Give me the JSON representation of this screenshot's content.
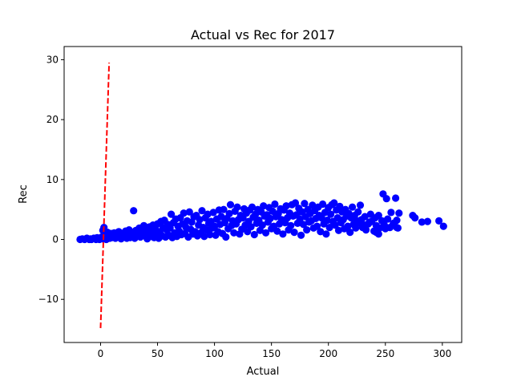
{
  "chart_data": {
    "type": "scatter",
    "title": "Actual vs Rec for 2017",
    "xlabel": "Actual",
    "ylabel": "Rec",
    "xlim": [
      -32,
      317
    ],
    "ylim": [
      -17.2,
      32.2
    ],
    "xticks": [
      0,
      50,
      100,
      150,
      200,
      250,
      300
    ],
    "yticks": [
      -10,
      0,
      10,
      20,
      30
    ],
    "grid": false,
    "legend": "none",
    "point_color": "#0000ff",
    "series": [
      {
        "kind": "points",
        "color": "#0000ff",
        "points": [
          [
            -18,
            0.0
          ],
          [
            -16,
            0.1
          ],
          [
            -14,
            0.0
          ],
          [
            -12,
            0.2
          ],
          [
            -10,
            0.0
          ],
          [
            -9,
            0.1
          ],
          [
            -8,
            0.0
          ],
          [
            -6,
            0.2
          ],
          [
            -5,
            0.1
          ],
          [
            -4,
            0.0
          ],
          [
            -3,
            0.3
          ],
          [
            -2,
            0.1
          ],
          [
            -1,
            0.0
          ],
          [
            0,
            0.2
          ],
          [
            1,
            0.4
          ],
          [
            2,
            0.1
          ],
          [
            3,
            0.5
          ],
          [
            4,
            0.3
          ],
          [
            5,
            0.0
          ],
          [
            6,
            0.8
          ],
          [
            7,
            0.4
          ],
          [
            8,
            0.2
          ],
          [
            2,
            1.5
          ],
          [
            3,
            2.0
          ],
          [
            6,
            1.2
          ],
          [
            9,
            1.0
          ],
          [
            10,
            0.3
          ],
          [
            11,
            0.7
          ],
          [
            12,
            1.1
          ],
          [
            13,
            0.2
          ],
          [
            14,
            0.9
          ],
          [
            15,
            0.4
          ],
          [
            16,
            1.3
          ],
          [
            17,
            0.6
          ],
          [
            18,
            0.1
          ],
          [
            19,
            1.0
          ],
          [
            20,
            0.5
          ],
          [
            22,
            1.4
          ],
          [
            23,
            0.2
          ],
          [
            24,
            0.8
          ],
          [
            25,
            1.6
          ],
          [
            26,
            0.3
          ],
          [
            27,
            1.1
          ],
          [
            28,
            0.6
          ],
          [
            29,
            4.8
          ],
          [
            30,
            0.2
          ],
          [
            31,
            1.5
          ],
          [
            32,
            0.9
          ],
          [
            34,
            1.9
          ],
          [
            35,
            0.4
          ],
          [
            36,
            1.2
          ],
          [
            38,
            2.3
          ],
          [
            39,
            0.6
          ],
          [
            40,
            1.7
          ],
          [
            41,
            0.1
          ],
          [
            42,
            1.0
          ],
          [
            43,
            2.1
          ],
          [
            44,
            0.5
          ],
          [
            45,
            1.4
          ],
          [
            46,
            2.4
          ],
          [
            47,
            0.3
          ],
          [
            48,
            1.8
          ],
          [
            49,
            0.8
          ],
          [
            50,
            2.6
          ],
          [
            51,
            0.2
          ],
          [
            52,
            1.3
          ],
          [
            53,
            3.0
          ],
          [
            54,
            0.6
          ],
          [
            55,
            2.0
          ],
          [
            56,
            3.2
          ],
          [
            57,
            0.4
          ],
          [
            58,
            1.6
          ],
          [
            59,
            2.5
          ],
          [
            60,
            0.7
          ],
          [
            61,
            1.9
          ],
          [
            62,
            4.2
          ],
          [
            63,
            0.3
          ],
          [
            64,
            2.8
          ],
          [
            65,
            1.1
          ],
          [
            66,
            3.4
          ],
          [
            67,
            0.5
          ],
          [
            68,
            2.2
          ],
          [
            69,
            1.4
          ],
          [
            70,
            3.6
          ],
          [
            71,
            0.8
          ],
          [
            72,
            2.6
          ],
          [
            73,
            4.4
          ],
          [
            74,
            1.0
          ],
          [
            75,
            2.0
          ],
          [
            76,
            3.1
          ],
          [
            77,
            0.4
          ],
          [
            78,
            4.6
          ],
          [
            79,
            1.7
          ],
          [
            80,
            2.9
          ],
          [
            81,
            0.9
          ],
          [
            82,
            3.8
          ],
          [
            83,
            1.3
          ],
          [
            84,
            4.0
          ],
          [
            85,
            0.6
          ],
          [
            86,
            2.4
          ],
          [
            87,
            3.3
          ],
          [
            88,
            1.1
          ],
          [
            89,
            4.8
          ],
          [
            90,
            2.0
          ],
          [
            91,
            0.5
          ],
          [
            92,
            3.6
          ],
          [
            93,
            1.6
          ],
          [
            94,
            4.2
          ],
          [
            95,
            2.7
          ],
          [
            96,
            0.8
          ],
          [
            97,
            3.0
          ],
          [
            98,
            1.9
          ],
          [
            99,
            4.5
          ],
          [
            100,
            2.2
          ],
          [
            101,
            0.7
          ],
          [
            102,
            3.4
          ],
          [
            103,
            1.3
          ],
          [
            104,
            4.9
          ],
          [
            105,
            2.5
          ],
          [
            106,
            3.8
          ],
          [
            107,
            1.0
          ],
          [
            108,
            5.0
          ],
          [
            109,
            2.8
          ],
          [
            110,
            0.4
          ],
          [
            111,
            3.5
          ],
          [
            112,
            1.8
          ],
          [
            113,
            4.3
          ],
          [
            114,
            5.8
          ],
          [
            115,
            2.3
          ],
          [
            116,
            3.1
          ],
          [
            117,
            1.1
          ],
          [
            118,
            4.7
          ],
          [
            119,
            2.6
          ],
          [
            120,
            5.4
          ],
          [
            121,
            3.3
          ],
          [
            122,
            0.9
          ],
          [
            123,
            4.0
          ],
          [
            124,
            1.7
          ],
          [
            125,
            3.6
          ],
          [
            126,
            5.1
          ],
          [
            127,
            2.4
          ],
          [
            128,
            4.4
          ],
          [
            129,
            1.3
          ],
          [
            130,
            3.0
          ],
          [
            131,
            4.9
          ],
          [
            132,
            2.1
          ],
          [
            133,
            5.4
          ],
          [
            134,
            3.7
          ],
          [
            135,
            0.8
          ],
          [
            136,
            4.2
          ],
          [
            137,
            2.7
          ],
          [
            138,
            5.0
          ],
          [
            139,
            3.2
          ],
          [
            140,
            1.5
          ],
          [
            141,
            4.6
          ],
          [
            142,
            2.4
          ],
          [
            143,
            5.6
          ],
          [
            144,
            3.9
          ],
          [
            145,
            1.1
          ],
          [
            146,
            4.1
          ],
          [
            147,
            2.9
          ],
          [
            148,
            5.3
          ],
          [
            149,
            3.5
          ],
          [
            150,
            1.8
          ],
          [
            151,
            4.7
          ],
          [
            152,
            2.2
          ],
          [
            153,
            5.9
          ],
          [
            154,
            3.8
          ],
          [
            155,
            1.4
          ],
          [
            156,
            4.3
          ],
          [
            157,
            2.6
          ],
          [
            158,
            5.1
          ],
          [
            159,
            3.3
          ],
          [
            160,
            0.9
          ],
          [
            161,
            4.9
          ],
          [
            162,
            2.8
          ],
          [
            163,
            5.6
          ],
          [
            164,
            3.6
          ],
          [
            165,
            1.6
          ],
          [
            166,
            4.4
          ],
          [
            167,
            2.3
          ],
          [
            168,
            5.8
          ],
          [
            169,
            3.9
          ],
          [
            170,
            1.2
          ],
          [
            171,
            6.1
          ],
          [
            172,
            4.1
          ],
          [
            173,
            2.7
          ],
          [
            174,
            5.2
          ],
          [
            175,
            3.4
          ],
          [
            176,
            0.7
          ],
          [
            177,
            4.6
          ],
          [
            178,
            2.5
          ],
          [
            179,
            6.0
          ],
          [
            180,
            3.8
          ],
          [
            181,
            1.6
          ],
          [
            182,
            5.0
          ],
          [
            183,
            2.9
          ],
          [
            184,
            4.3
          ],
          [
            185,
            3.1
          ],
          [
            186,
            5.7
          ],
          [
            187,
            1.9
          ],
          [
            188,
            4.8
          ],
          [
            189,
            3.5
          ],
          [
            190,
            2.2
          ],
          [
            191,
            5.4
          ],
          [
            192,
            4.0
          ],
          [
            193,
            1.3
          ],
          [
            194,
            3.6
          ],
          [
            195,
            5.9
          ],
          [
            196,
            2.6
          ],
          [
            197,
            4.5
          ],
          [
            198,
            0.9
          ],
          [
            199,
            3.2
          ],
          [
            200,
            5.3
          ],
          [
            201,
            2.0
          ],
          [
            202,
            4.2
          ],
          [
            203,
            5.8
          ],
          [
            204,
            3.0
          ],
          [
            205,
            6.1
          ],
          [
            206,
            2.4
          ],
          [
            207,
            4.9
          ],
          [
            208,
            3.6
          ],
          [
            209,
            1.5
          ],
          [
            210,
            5.5
          ],
          [
            211,
            2.8
          ],
          [
            212,
            4.6
          ],
          [
            213,
            3.3
          ],
          [
            214,
            1.8
          ],
          [
            215,
            5.0
          ],
          [
            216,
            3.9
          ],
          [
            217,
            2.2
          ],
          [
            218,
            4.3
          ],
          [
            219,
            1.2
          ],
          [
            220,
            3.6
          ],
          [
            221,
            5.4
          ],
          [
            222,
            2.5
          ],
          [
            223,
            4.0
          ],
          [
            224,
            1.9
          ],
          [
            225,
            3.1
          ],
          [
            226,
            4.6
          ],
          [
            227,
            2.8
          ],
          [
            228,
            5.7
          ],
          [
            229,
            3.3
          ],
          [
            230,
            2.0
          ],
          [
            232,
            3.8
          ],
          [
            233,
            1.6
          ],
          [
            235,
            2.6
          ],
          [
            237,
            4.2
          ],
          [
            238,
            3.0
          ],
          [
            240,
            1.4
          ],
          [
            241,
            3.6
          ],
          [
            242,
            2.3
          ],
          [
            244,
            4.0
          ],
          [
            245,
            1.9
          ],
          [
            247,
            3.1
          ],
          [
            248,
            7.6
          ],
          [
            249,
            2.4
          ],
          [
            250,
            1.8
          ],
          [
            251,
            6.8
          ],
          [
            252,
            3.4
          ],
          [
            254,
            2.0
          ],
          [
            255,
            4.5
          ],
          [
            257,
            2.7
          ],
          [
            259,
            6.9
          ],
          [
            260,
            3.2
          ],
          [
            261,
            1.9
          ],
          [
            262,
            4.4
          ],
          [
            274,
            4.0
          ],
          [
            276,
            3.6
          ],
          [
            282,
            2.9
          ],
          [
            287,
            3.0
          ],
          [
            297,
            3.1
          ],
          [
            301,
            2.2
          ],
          [
            242,
            1.2
          ],
          [
            244,
            0.9
          ],
          [
            236,
            2.9
          ],
          [
            232,
            2.4
          ],
          [
            260,
            2.0
          ]
        ]
      },
      {
        "kind": "dashed-line",
        "color": "#ff0000",
        "points": [
          [
            0,
            -14.8
          ],
          [
            7.5,
            29.5
          ]
        ]
      }
    ]
  }
}
